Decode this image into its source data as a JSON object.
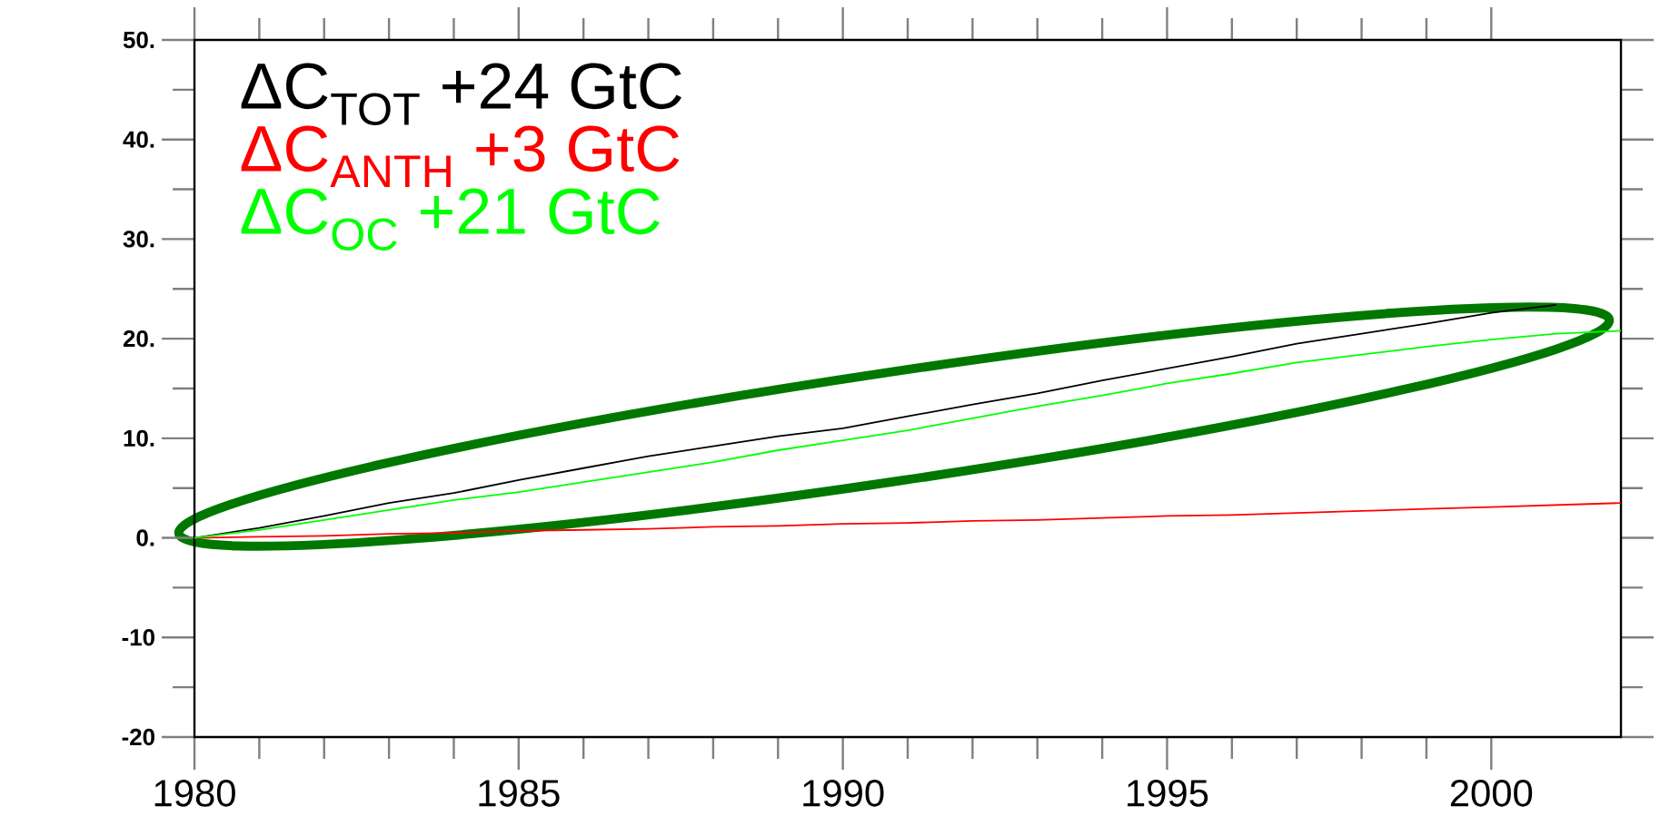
{
  "chart_data": {
    "type": "line",
    "xlim": [
      1980,
      2002
    ],
    "xticks": [
      1980,
      1985,
      1990,
      1995,
      2000
    ],
    "ylim": [
      -20,
      50
    ],
    "yticks": [
      {
        "value": -20,
        "label": "-20"
      },
      {
        "value": -10,
        "label": "-10"
      },
      {
        "value": 0,
        "label": "0."
      },
      {
        "value": 10,
        "label": "10."
      },
      {
        "value": 20,
        "label": "20."
      },
      {
        "value": 30,
        "label": "30."
      },
      {
        "value": 40,
        "label": "40."
      },
      {
        "value": 50,
        "label": "50."
      }
    ],
    "legend": "top left",
    "grid": false,
    "series": [
      {
        "name": "ΔC$_{TOT}$ +24 GtC",
        "color": "#000000",
        "x": [
          1980,
          1981,
          1982,
          1983,
          1984,
          1985,
          1986,
          1987,
          1988,
          1989,
          1990,
          1991,
          1992,
          1993,
          1994,
          1995,
          1996,
          1997,
          1998,
          1999,
          2000,
          2001
        ],
        "values": [
          0,
          1.0,
          2.2,
          3.5,
          4.5,
          5.8,
          7.0,
          8.2,
          9.2,
          10.2,
          11.0,
          12.2,
          13.4,
          14.5,
          15.8,
          17.0,
          18.2,
          19.5,
          20.5,
          21.5,
          22.6,
          23.4
        ]
      },
      {
        "name": "ΔC$_{ANTH}$ +3 GtC",
        "color": "#ff0000",
        "x": [
          1980,
          1981,
          1982,
          1983,
          1984,
          1985,
          1986,
          1987,
          1988,
          1989,
          1990,
          1991,
          1992,
          1993,
          1994,
          1995,
          1996,
          1997,
          1998,
          1999,
          2000,
          2001,
          2002
        ],
        "values": [
          0,
          0.1,
          0.2,
          0.4,
          0.5,
          0.7,
          0.8,
          0.9,
          1.1,
          1.2,
          1.4,
          1.5,
          1.7,
          1.8,
          2.0,
          2.2,
          2.3,
          2.5,
          2.7,
          2.9,
          3.1,
          3.3,
          3.5
        ]
      },
      {
        "name": "ΔC$_{OC}$  +21 GtC",
        "color": "#00ff00",
        "x": [
          1980,
          1981,
          1982,
          1983,
          1984,
          1985,
          1986,
          1987,
          1988,
          1989,
          1990,
          1991,
          1992,
          1993,
          1994,
          1995,
          1996,
          1997,
          1998,
          1999,
          2000,
          2001,
          2002
        ],
        "values": [
          0,
          0.8,
          1.8,
          2.8,
          3.8,
          4.6,
          5.6,
          6.6,
          7.6,
          8.8,
          9.8,
          10.8,
          12.0,
          13.2,
          14.3,
          15.5,
          16.5,
          17.6,
          18.4,
          19.2,
          19.9,
          20.5,
          20.8
        ]
      }
    ]
  }
}
